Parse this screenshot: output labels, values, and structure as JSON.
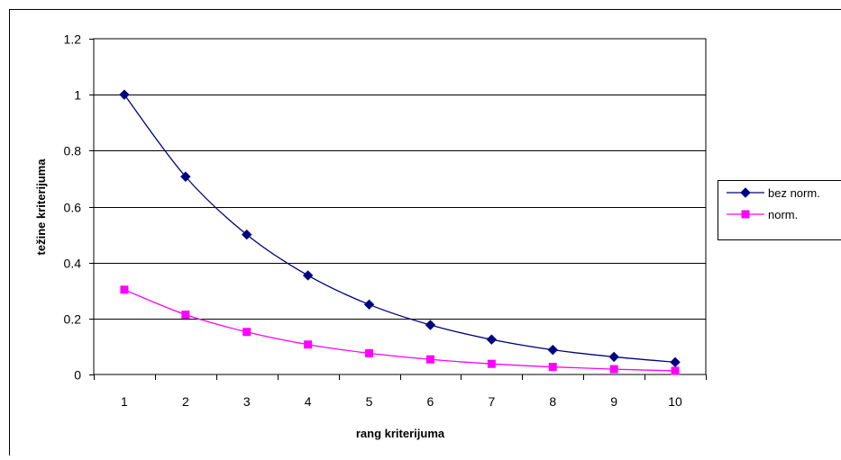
{
  "chart_data": {
    "type": "line",
    "title": "",
    "xlabel": "rang kriterijuma",
    "ylabel": "težine kriterijuma",
    "categories": [
      "1",
      "2",
      "3",
      "4",
      "5",
      "6",
      "7",
      "8",
      "9",
      "10"
    ],
    "ylim": [
      0,
      1.2
    ],
    "yticks": [
      "0",
      "0.2",
      "0.4",
      "0.6",
      "0.8",
      "1",
      "1.2"
    ],
    "grid": "horizontal",
    "legend_position": "right",
    "series": [
      {
        "name": "bez norm.",
        "color": "#000080",
        "marker": "diamond",
        "values": [
          1.0,
          0.707,
          0.5,
          0.354,
          0.25,
          0.177,
          0.125,
          0.088,
          0.063,
          0.044
        ]
      },
      {
        "name": "norm.",
        "color": "#ff00ff",
        "marker": "square",
        "values": [
          0.303,
          0.214,
          0.152,
          0.107,
          0.076,
          0.054,
          0.038,
          0.027,
          0.019,
          0.013
        ]
      }
    ]
  }
}
